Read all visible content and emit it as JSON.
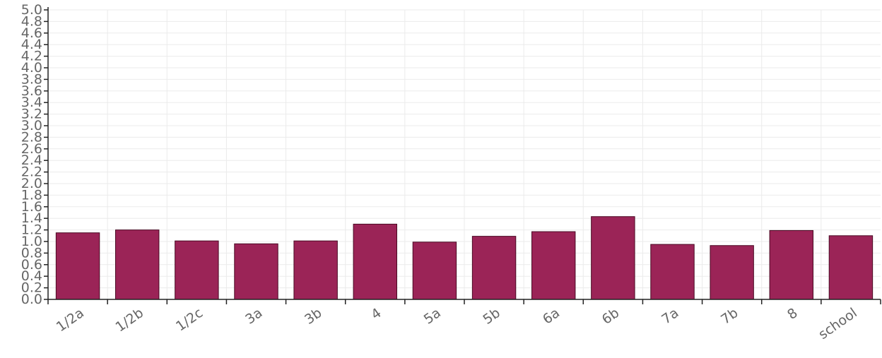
{
  "chart_data": {
    "type": "bar",
    "categories": [
      "1/2a",
      "1/2b",
      "1/2c",
      "3a",
      "3b",
      "4",
      "5a",
      "5b",
      "6a",
      "6b",
      "7a",
      "7b",
      "8",
      "school"
    ],
    "values": [
      1.15,
      1.2,
      1.01,
      0.96,
      1.01,
      1.3,
      0.99,
      1.09,
      1.17,
      1.43,
      0.95,
      0.93,
      1.19,
      1.1
    ],
    "ylim": [
      0,
      5
    ],
    "yticks": [
      "0.0",
      "0.2",
      "0.4",
      "0.6",
      "0.8",
      "1.0",
      "1.2",
      "1.4",
      "1.6",
      "1.8",
      "2.0",
      "2.2",
      "2.4",
      "2.6",
      "2.8",
      "3.0",
      "3.2",
      "3.4",
      "3.6",
      "3.8",
      "4.0",
      "4.2",
      "4.4",
      "4.6",
      "4.8",
      "5.0"
    ],
    "title": "",
    "xlabel": "",
    "ylabel": "",
    "grid": true,
    "bar_color": "#9b2457",
    "bar_edge_color": "#4a0a24"
  }
}
